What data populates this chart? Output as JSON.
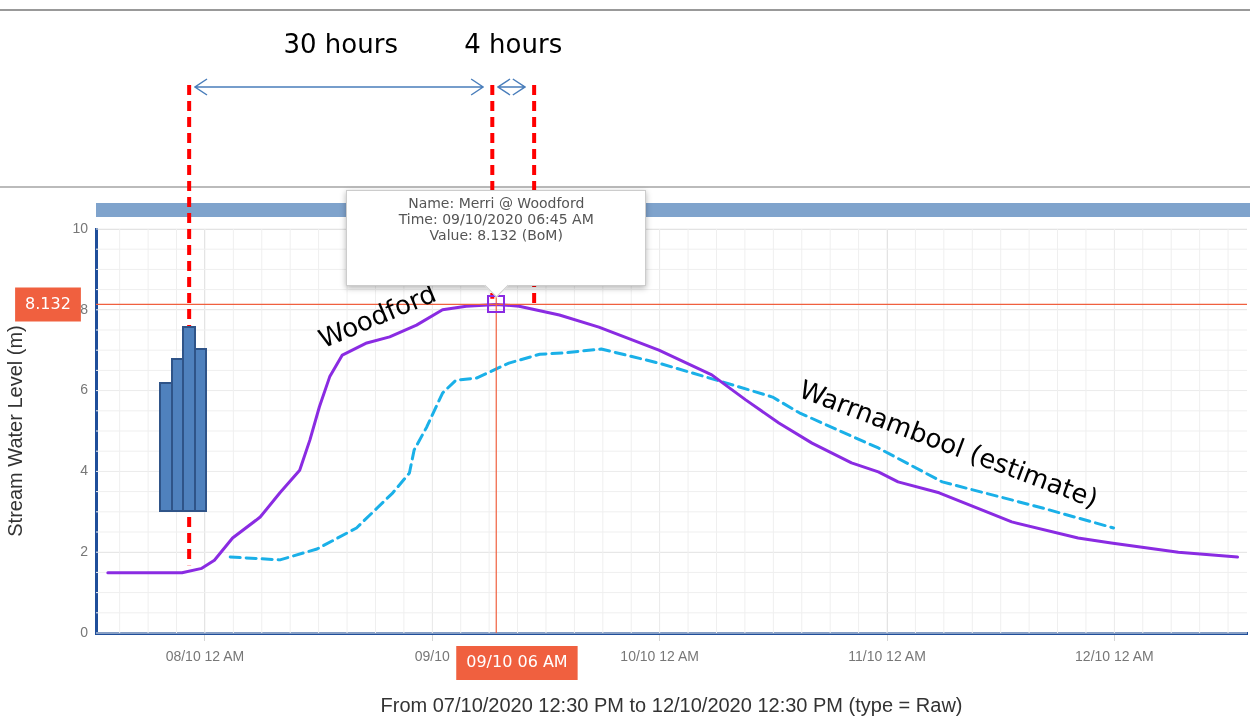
{
  "chart_data": {
    "type": "line",
    "xlabel": "From 07/10/2020 12:30 PM to 12/10/2020 12:30 PM (type = Raw)",
    "ylabel": "Stream Water Level (m)",
    "xlim": [
      "2020-10-07T12:30",
      "2020-10-12T14:00"
    ],
    "xticks": [
      {
        "value": "2020-10-08T00:00",
        "label": "08/10 12 AM"
      },
      {
        "value": "2020-10-09T00:00",
        "label": "09/10"
      },
      {
        "value": "2020-10-10T00:00",
        "label": "10/10 12 AM"
      },
      {
        "value": "2020-10-11T00:00",
        "label": "11/10 12 AM"
      },
      {
        "value": "2020-10-12T00:00",
        "label": "12/10 12 AM"
      }
    ],
    "ylim": [
      0,
      10
    ],
    "yticks": [
      0,
      2,
      4,
      6,
      8,
      10
    ],
    "grid": true,
    "legend": false,
    "marker": "none",
    "series": [
      {
        "name": "Woodford",
        "color": "#8a2be2",
        "line_style": "solid",
        "x": [
          "2020-10-07T13:45",
          "2020-10-07T21:35",
          "2020-10-07T23:40",
          "2020-10-08T01:00",
          "2020-10-08T02:55",
          "2020-10-08T05:50",
          "2020-10-08T07:55",
          "2020-10-08T10:00",
          "2020-10-08T11:05",
          "2020-10-08T12:05",
          "2020-10-08T13:10",
          "2020-10-08T14:30",
          "2020-10-08T17:05",
          "2020-10-08T19:30",
          "2020-10-08T22:20",
          "2020-10-09T01:05",
          "2020-10-09T03:35",
          "2020-10-09T06:45",
          "2020-10-09T09:10",
          "2020-10-09T13:25",
          "2020-10-09T17:35",
          "2020-10-09T23:55",
          "2020-10-10T05:30",
          "2020-10-10T09:05",
          "2020-10-10T12:35",
          "2020-10-10T16:05",
          "2020-10-10T20:15",
          "2020-10-10T23:05",
          "2020-10-11T01:10",
          "2020-10-11T05:30",
          "2020-10-11T13:10",
          "2020-10-11T20:10",
          "2020-10-11T23:40",
          "2020-10-12T06:45",
          "2020-10-12T13:00"
        ],
        "values": [
          1.49,
          1.49,
          1.6,
          1.8,
          2.35,
          2.87,
          3.47,
          4.03,
          4.78,
          5.6,
          6.34,
          6.88,
          7.18,
          7.33,
          7.62,
          8.0,
          8.09,
          8.132,
          8.09,
          7.87,
          7.57,
          7.0,
          6.39,
          5.77,
          5.2,
          4.7,
          4.21,
          3.99,
          3.74,
          3.47,
          2.75,
          2.35,
          2.23,
          2.0,
          1.88
        ]
      },
      {
        "name": "Warrnambool (estimate)",
        "color": "#1ab0e8",
        "line_style": "dashed",
        "x": [
          "2020-10-08T02:40",
          "2020-10-08T07:55",
          "2020-10-08T11:50",
          "2020-10-08T16:00",
          "2020-10-08T19:50",
          "2020-10-08T21:35",
          "2020-10-08T22:05",
          "2020-10-08T23:25",
          "2020-10-09T01:05",
          "2020-10-09T02:30",
          "2020-10-09T04:40",
          "2020-10-09T08:05",
          "2020-10-09T11:20",
          "2020-10-09T13:45",
          "2020-10-09T17:50",
          "2020-10-09T23:55",
          "2020-10-10T06:00",
          "2020-10-10T11:55",
          "2020-10-10T14:45",
          "2020-10-10T23:05",
          "2020-10-11T05:50",
          "2020-10-11T16:00",
          "2020-10-11T23:55"
        ],
        "values": [
          1.88,
          1.81,
          2.08,
          2.6,
          3.47,
          3.96,
          4.53,
          5.1,
          5.94,
          6.26,
          6.31,
          6.68,
          6.9,
          6.93,
          7.03,
          6.68,
          6.26,
          5.84,
          5.45,
          4.58,
          3.74,
          3.12,
          2.6
        ]
      }
    ],
    "ref_lines": [
      {
        "axis": "y",
        "value": 8.132,
        "label": "8.132",
        "color": "#f0603f",
        "line_style": "solid"
      },
      {
        "axis": "x",
        "value": "2020-10-09T06:45",
        "label": "09/10 06 AM",
        "color": "#f0603f",
        "line_style": "solid"
      },
      {
        "axis": "x",
        "value": "2020-10-07T22:20",
        "color": "#ff0000",
        "line_style": "dashed"
      },
      {
        "axis": "x",
        "value": "2020-10-09T06:20",
        "color": "#ff0000",
        "line_style": "dashed"
      },
      {
        "axis": "x",
        "value": "2020-10-09T10:45",
        "color": "#ff0000",
        "line_style": "dashed"
      }
    ],
    "annotations": [
      "30 hours",
      "4 hours",
      "Name: Merri @ Woodford\nTime: 09/10/2020 06:45 AM\nValue: 8.132 (BoM)"
    ]
  }
}
